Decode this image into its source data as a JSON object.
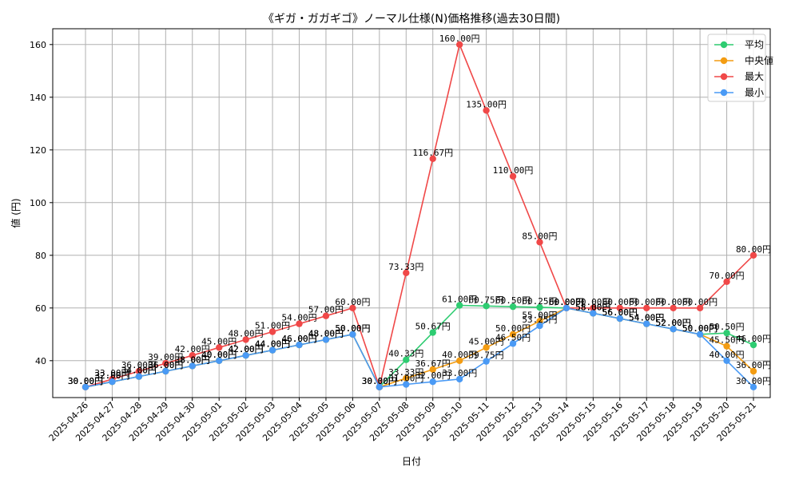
{
  "chart_data": {
    "type": "line",
    "title": "《ギガ・ガガギゴ》ノーマル仕様(N)価格推移(過去30日間)",
    "xlabel": "日付",
    "ylabel": "値 (円)",
    "ylim": [
      26,
      166
    ],
    "yticks": [
      40,
      60,
      80,
      100,
      120,
      140,
      160
    ],
    "grid": true,
    "legend_position": "top-right",
    "value_suffix": "円",
    "categories": [
      "2025-04-26",
      "2025-04-27",
      "2025-04-28",
      "2025-04-29",
      "2025-04-30",
      "2025-05-01",
      "2025-05-02",
      "2025-05-03",
      "2025-05-04",
      "2025-05-05",
      "2025-05-06",
      "2025-05-07",
      "2025-05-08",
      "2025-05-09",
      "2025-05-10",
      "2025-05-11",
      "2025-05-12",
      "2025-05-13",
      "2025-05-14",
      "2025-05-15",
      "2025-05-16",
      "2025-05-17",
      "2025-05-18",
      "2025-05-19",
      "2025-05-20",
      "2025-05-21"
    ],
    "series": [
      {
        "name": "平均",
        "color": "#2ecc71",
        "values": [
          30.0,
          32.0,
          34.0,
          36.0,
          38.0,
          40.0,
          42.0,
          44.0,
          46.0,
          48.0,
          50.0,
          30.0,
          40.33,
          50.67,
          61.0,
          60.75,
          60.5,
          60.25,
          60.0,
          58.0,
          56.0,
          54.0,
          52.0,
          50.0,
          50.5,
          46.0
        ]
      },
      {
        "name": "中央値",
        "color": "#f39c12",
        "values": [
          30.0,
          32.0,
          34.0,
          36.0,
          38.0,
          40.0,
          42.0,
          44.0,
          46.0,
          48.0,
          50.0,
          30.0,
          33.33,
          36.67,
          40.0,
          45.0,
          50.0,
          55.0,
          60.0,
          58.0,
          56.0,
          54.0,
          52.0,
          50.0,
          45.5,
          36.0
        ]
      },
      {
        "name": "最大",
        "color": "#f04848",
        "values": [
          30.0,
          33.0,
          36.0,
          39.0,
          42.0,
          45.0,
          48.0,
          51.0,
          54.0,
          57.0,
          60.0,
          30.0,
          73.33,
          116.67,
          160.0,
          135.0,
          110.0,
          85.0,
          60.0,
          60.0,
          60.0,
          60.0,
          60.0,
          60.0,
          70.0,
          80.0
        ]
      },
      {
        "name": "最小",
        "color": "#4a9af5",
        "values": [
          30.0,
          32.0,
          34.0,
          36.0,
          38.0,
          40.0,
          42.0,
          44.0,
          46.0,
          48.0,
          50.0,
          30.0,
          31.0,
          32.0,
          33.0,
          39.75,
          46.5,
          53.25,
          60.0,
          58.0,
          56.0,
          54.0,
          52.0,
          50.0,
          40.0,
          30.0
        ]
      }
    ]
  }
}
